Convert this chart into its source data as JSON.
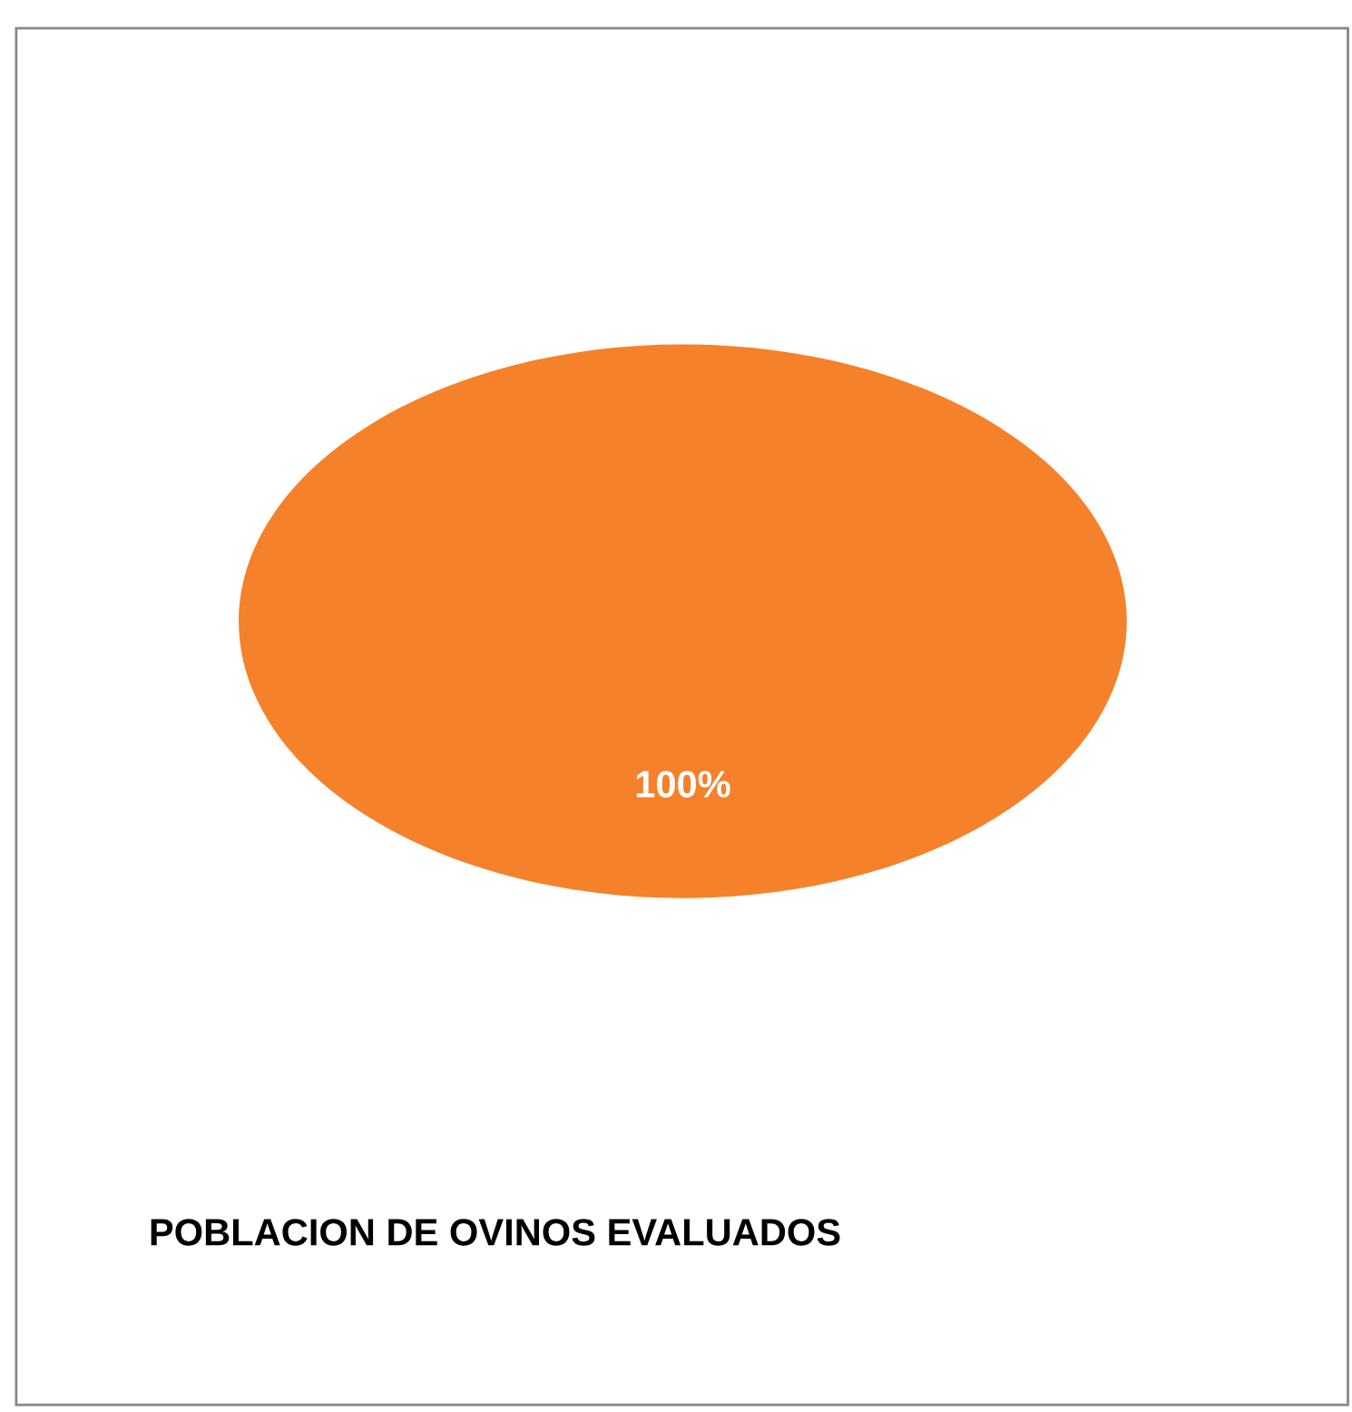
{
  "chart_data": {
    "type": "pie",
    "title": "POBLACION DE OVINOS EVALUADOS",
    "categories": [
      null
    ],
    "values": [
      100
    ],
    "colors": [
      "#f5812a"
    ],
    "value_labels": [
      "100%"
    ]
  }
}
